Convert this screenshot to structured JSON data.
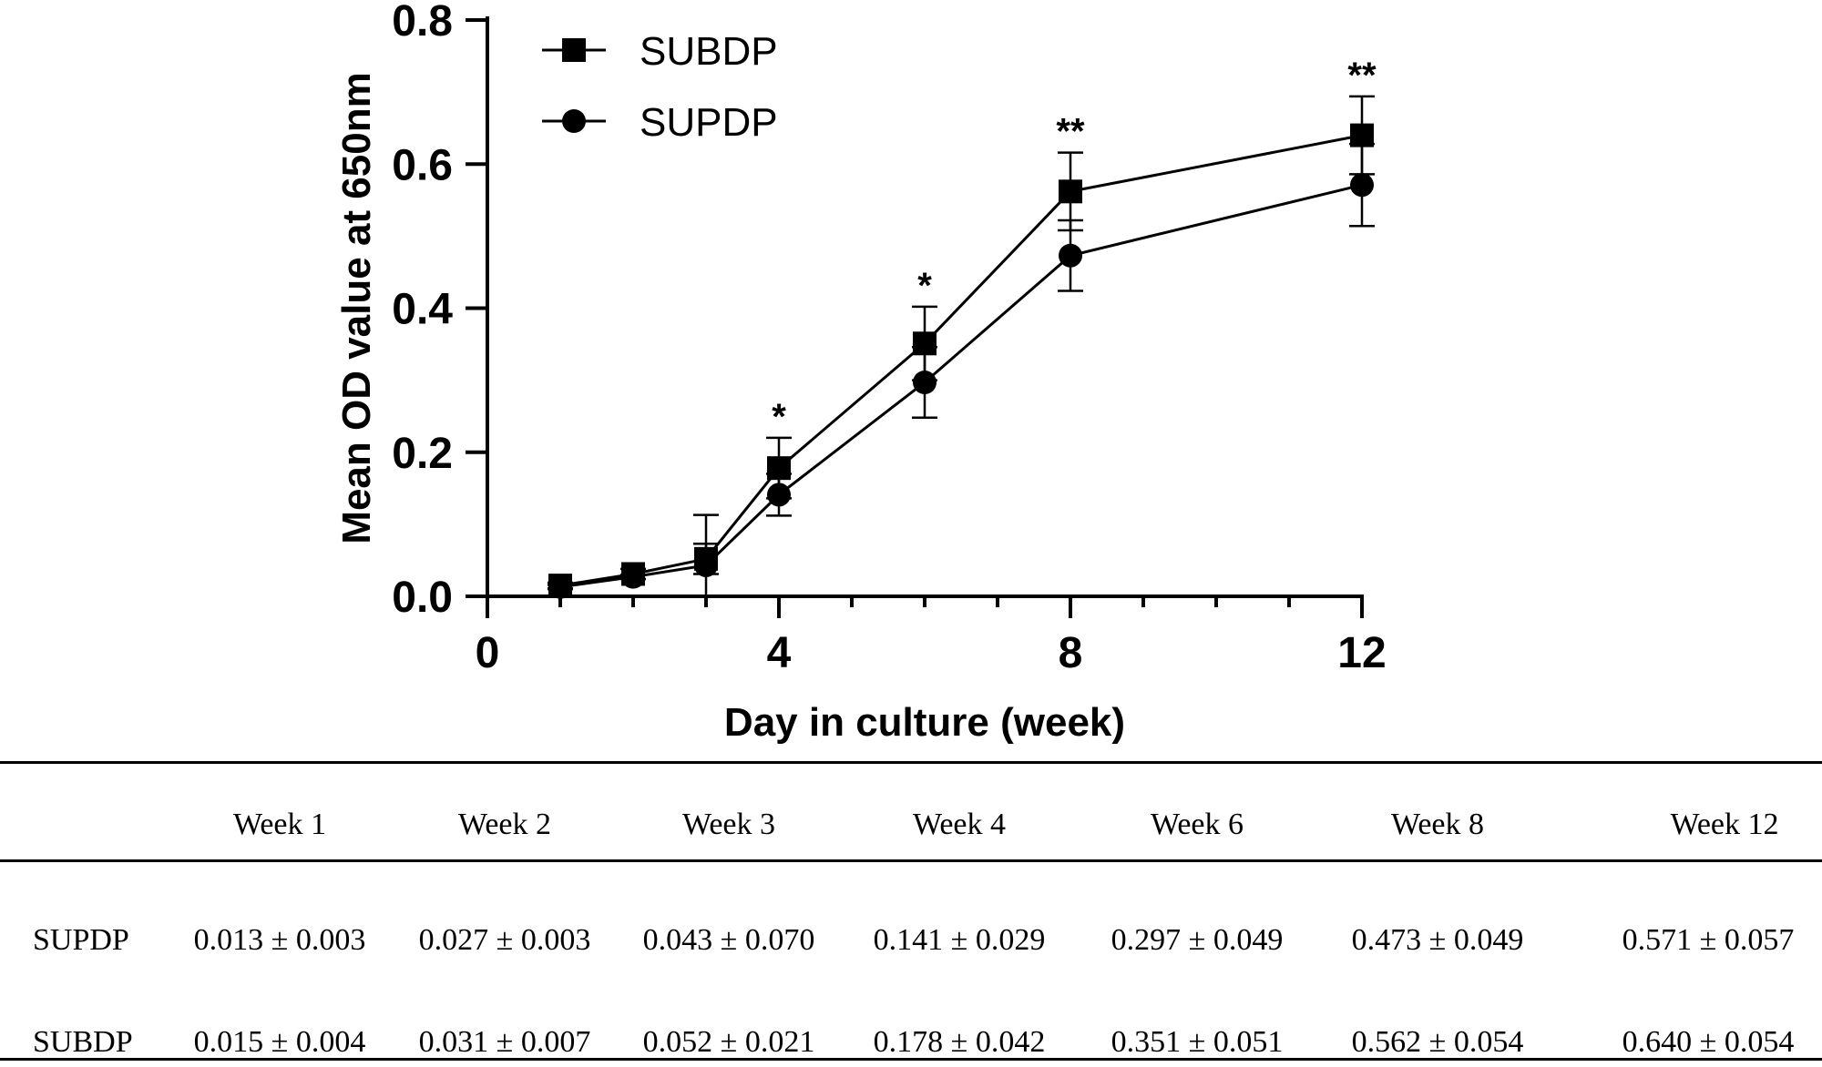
{
  "chart_data": {
    "type": "line",
    "title": "",
    "xlabel": "Day in culture (week)",
    "ylabel": "Mean OD value at 650nm",
    "xlim": [
      0,
      12
    ],
    "ylim": [
      0,
      0.8
    ],
    "x_ticks": [
      0,
      4,
      8,
      12
    ],
    "y_ticks": [
      "0.0",
      "0.2",
      "0.4",
      "0.6",
      "0.8"
    ],
    "grid": false,
    "legend_position": "top-left",
    "x": [
      1,
      2,
      3,
      4,
      6,
      8,
      12
    ],
    "series": [
      {
        "name": "SUBDP",
        "marker": "square",
        "values": [
          0.015,
          0.031,
          0.052,
          0.178,
          0.351,
          0.562,
          0.64
        ],
        "errors": [
          0.004,
          0.007,
          0.021,
          0.042,
          0.051,
          0.054,
          0.054
        ]
      },
      {
        "name": "SUPDP",
        "marker": "circle",
        "values": [
          0.013,
          0.027,
          0.043,
          0.141,
          0.297,
          0.473,
          0.571
        ],
        "errors": [
          0.003,
          0.003,
          0.07,
          0.029,
          0.049,
          0.049,
          0.057
        ]
      }
    ],
    "annotations": [
      {
        "x": 4,
        "text": "*"
      },
      {
        "x": 6,
        "text": "*"
      },
      {
        "x": 8,
        "text": "**"
      },
      {
        "x": 12,
        "text": "**"
      }
    ]
  },
  "table": {
    "headers": [
      "Week 1",
      "Week 2",
      "Week 3",
      "Week 4",
      "Week 6",
      "Week 8",
      "Week 12"
    ],
    "rows": [
      {
        "label": "SUPDP",
        "values": [
          "0.013 ± 0.003",
          "0.027 ± 0.003",
          "0.043 ± 0.070",
          "0.141 ± 0.029",
          "0.297 ± 0.049",
          "0.473 ± 0.049",
          "0.571 ± 0.057"
        ]
      },
      {
        "label": "SUBDP",
        "values": [
          "0.015 ± 0.004",
          "0.031 ± 0.007",
          "0.052 ± 0.021",
          "0.178 ± 0.042",
          "0.351 ± 0.051",
          "0.562 ± 0.054",
          "0.640 ± 0.054"
        ]
      }
    ]
  }
}
